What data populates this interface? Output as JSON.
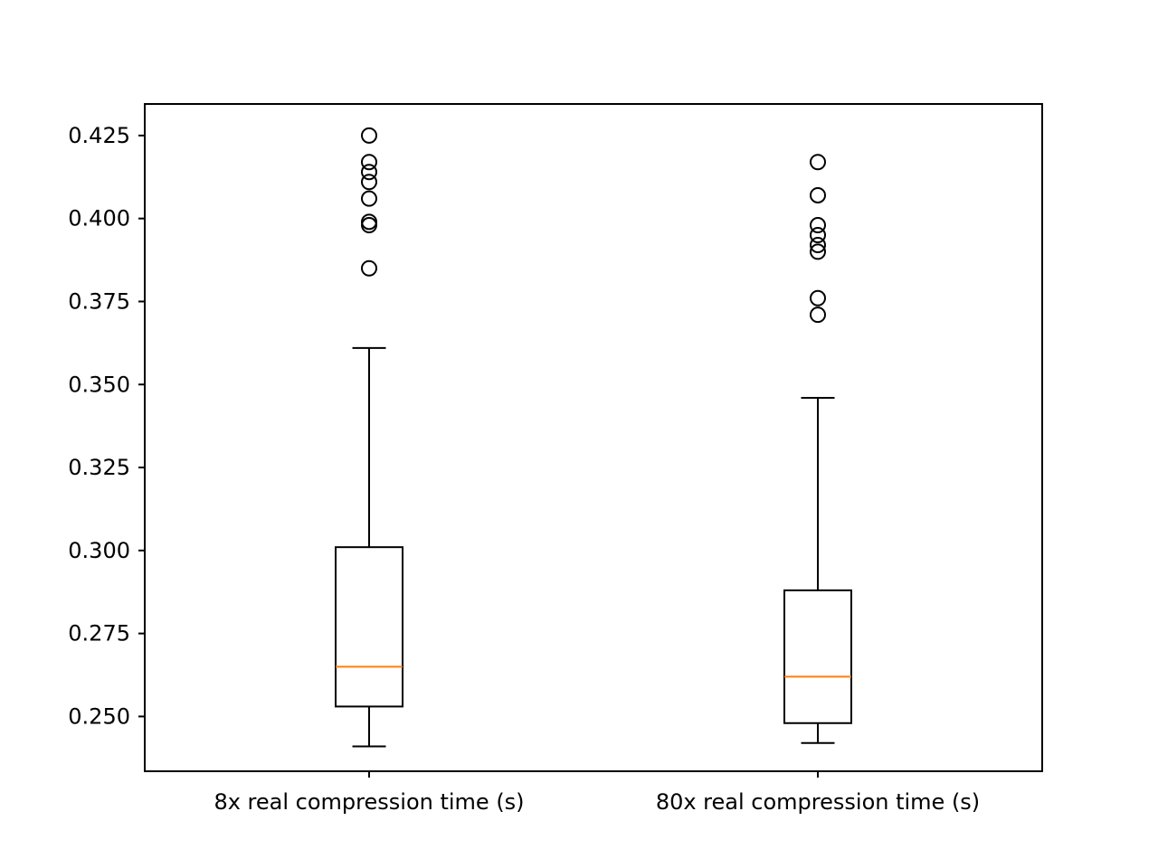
{
  "chart_data": {
    "type": "boxplot",
    "title": "",
    "xlabel": "",
    "ylabel": "",
    "ylim": [
      0.2335,
      0.4345
    ],
    "yticks": [
      0.25,
      0.275,
      0.3,
      0.325,
      0.35,
      0.375,
      0.4,
      0.425
    ],
    "ytick_labels": [
      "0.250",
      "0.275",
      "0.300",
      "0.325",
      "0.350",
      "0.375",
      "0.400",
      "0.425"
    ],
    "grid": false,
    "legend": "none",
    "categories": [
      "8x real compression time (s)",
      "80x real compression time (s)"
    ],
    "boxes": [
      {
        "whisker_low": 0.241,
        "q1": 0.253,
        "median": 0.265,
        "q3": 0.301,
        "whisker_high": 0.361,
        "outliers": [
          0.385,
          0.398,
          0.399,
          0.406,
          0.411,
          0.414,
          0.417,
          0.425
        ]
      },
      {
        "whisker_low": 0.242,
        "q1": 0.248,
        "median": 0.262,
        "q3": 0.288,
        "whisker_high": 0.346,
        "outliers": [
          0.371,
          0.376,
          0.39,
          0.392,
          0.395,
          0.398,
          0.407,
          0.417
        ]
      }
    ],
    "colors": {
      "box": "#000000",
      "median": "#ff7f0e",
      "outlier": "#000000"
    }
  }
}
